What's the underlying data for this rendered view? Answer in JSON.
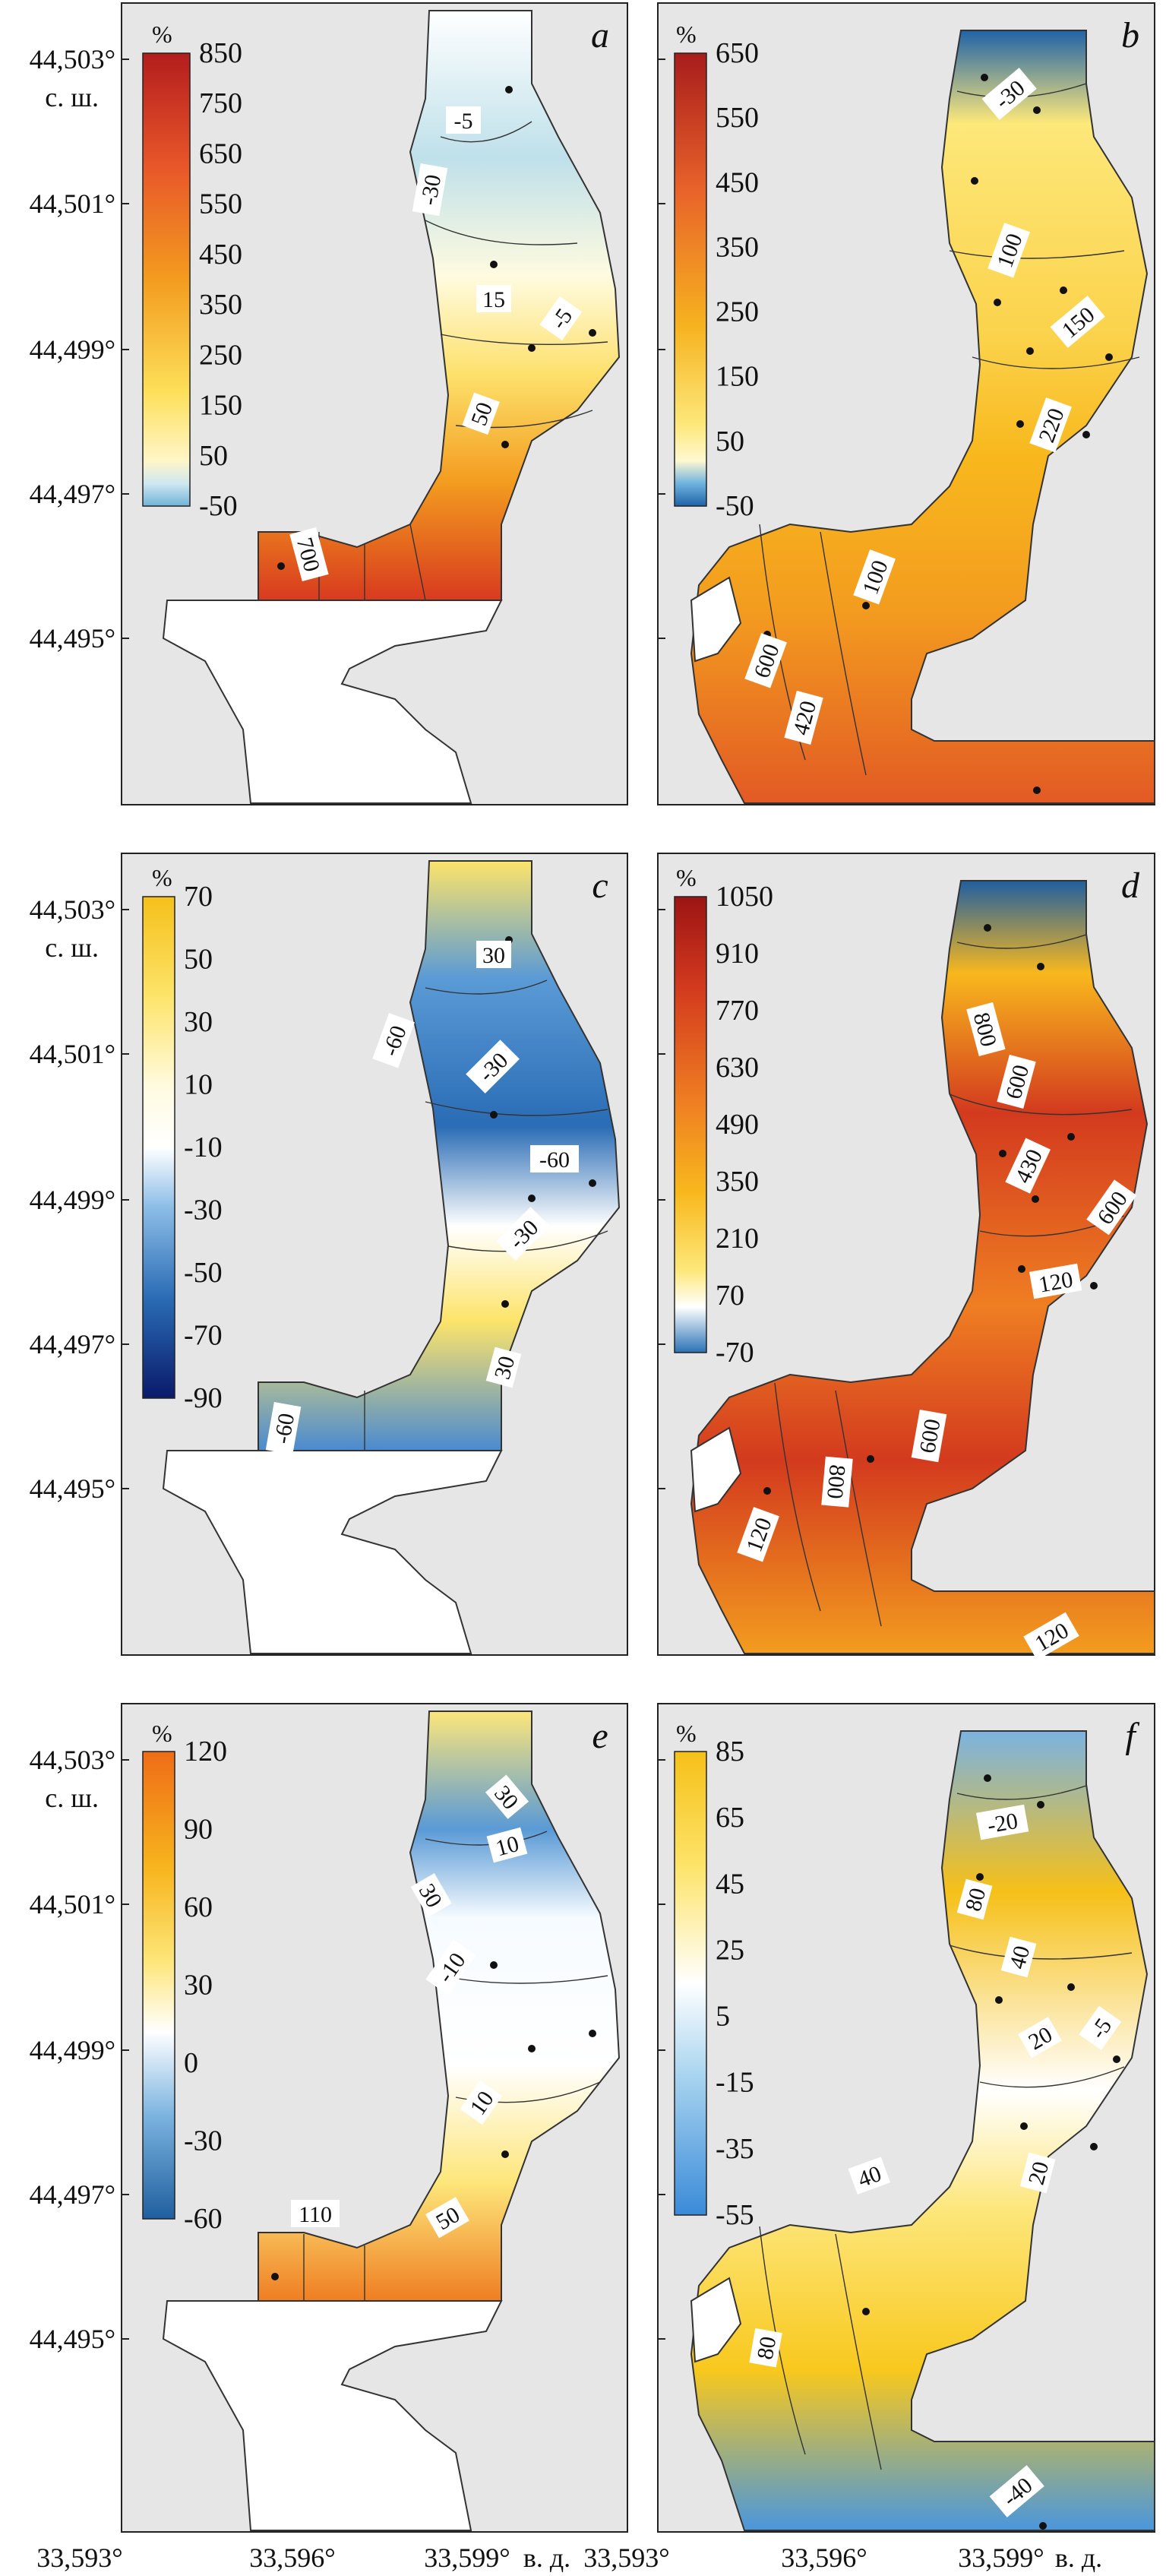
{
  "axes": {
    "y_ticks": [
      "44,503°",
      "44,501°",
      "44,499°",
      "44,497°",
      "44,495°"
    ],
    "y_unit": "с. ш.",
    "x_ticks_left": [
      "33,593°",
      "33,596°",
      "33,599°"
    ],
    "x_ticks_right": [
      "33,593°",
      "33,596°",
      "33,599°"
    ],
    "x_unit": "в. д."
  },
  "panels": [
    {
      "id": "a",
      "letter": "a",
      "unit": "%",
      "scale": [
        "850",
        "750",
        "650",
        "550",
        "450",
        "350",
        "250",
        "150",
        "50",
        "-50"
      ],
      "colors": [
        "#c0392b",
        "#e8622a",
        "#f6a81f",
        "#fde87a",
        "#c9e4ec",
        "#8cc3d6"
      ],
      "contours": [
        "-5",
        "-30",
        "15",
        "-5",
        "50",
        "700"
      ]
    },
    {
      "id": "b",
      "letter": "b",
      "unit": "%",
      "scale": [
        "650",
        "550",
        "450",
        "350",
        "250",
        "150",
        "50",
        "-50"
      ],
      "colors": [
        "#b02020",
        "#e8622a",
        "#f6a81f",
        "#fde87a",
        "#2a72b5"
      ],
      "contours": [
        "-30",
        "100",
        "150",
        "220",
        "100",
        "600",
        "420"
      ]
    },
    {
      "id": "c",
      "letter": "c",
      "unit": "%",
      "scale": [
        "70",
        "50",
        "30",
        "10",
        "-10",
        "-30",
        "-50",
        "-70",
        "-90"
      ],
      "colors": [
        "#f7c61e",
        "#fde87a",
        "#ffffff",
        "#4a90d0",
        "#0a2a7a"
      ],
      "contours": [
        "30",
        "-60",
        "-30",
        "-60",
        "-30",
        "30",
        "-60"
      ]
    },
    {
      "id": "d",
      "letter": "d",
      "unit": "%",
      "scale": [
        "1050",
        "910",
        "770",
        "630",
        "490",
        "350",
        "210",
        "70",
        "-70"
      ],
      "colors": [
        "#a01818",
        "#d83a1e",
        "#ef7a22",
        "#f8b31d",
        "#fde87a",
        "#2a72b5"
      ],
      "contours": [
        "800",
        "600",
        "430",
        "600",
        "120",
        "800",
        "600",
        "120",
        "120"
      ]
    },
    {
      "id": "e",
      "letter": "e",
      "unit": "%",
      "scale": [
        "120",
        "90",
        "60",
        "30",
        "0",
        "-30",
        "-60"
      ],
      "colors": [
        "#f07a1a",
        "#f7c61e",
        "#fde87a",
        "#ffffff",
        "#2a72b5"
      ],
      "contours": [
        "30",
        "30",
        "10",
        "-10",
        "10",
        "110",
        "50"
      ]
    },
    {
      "id": "f",
      "letter": "f",
      "unit": "%",
      "scale": [
        "85",
        "65",
        "45",
        "25",
        "5",
        "-15",
        "-35",
        "-55"
      ],
      "colors": [
        "#f7c61e",
        "#fde87a",
        "#ffffff",
        "#8cc3e6",
        "#3a8ad8"
      ],
      "contours": [
        "-20",
        "80",
        "40",
        "-5",
        "20",
        "20",
        "40",
        "80",
        "-40"
      ]
    }
  ]
}
